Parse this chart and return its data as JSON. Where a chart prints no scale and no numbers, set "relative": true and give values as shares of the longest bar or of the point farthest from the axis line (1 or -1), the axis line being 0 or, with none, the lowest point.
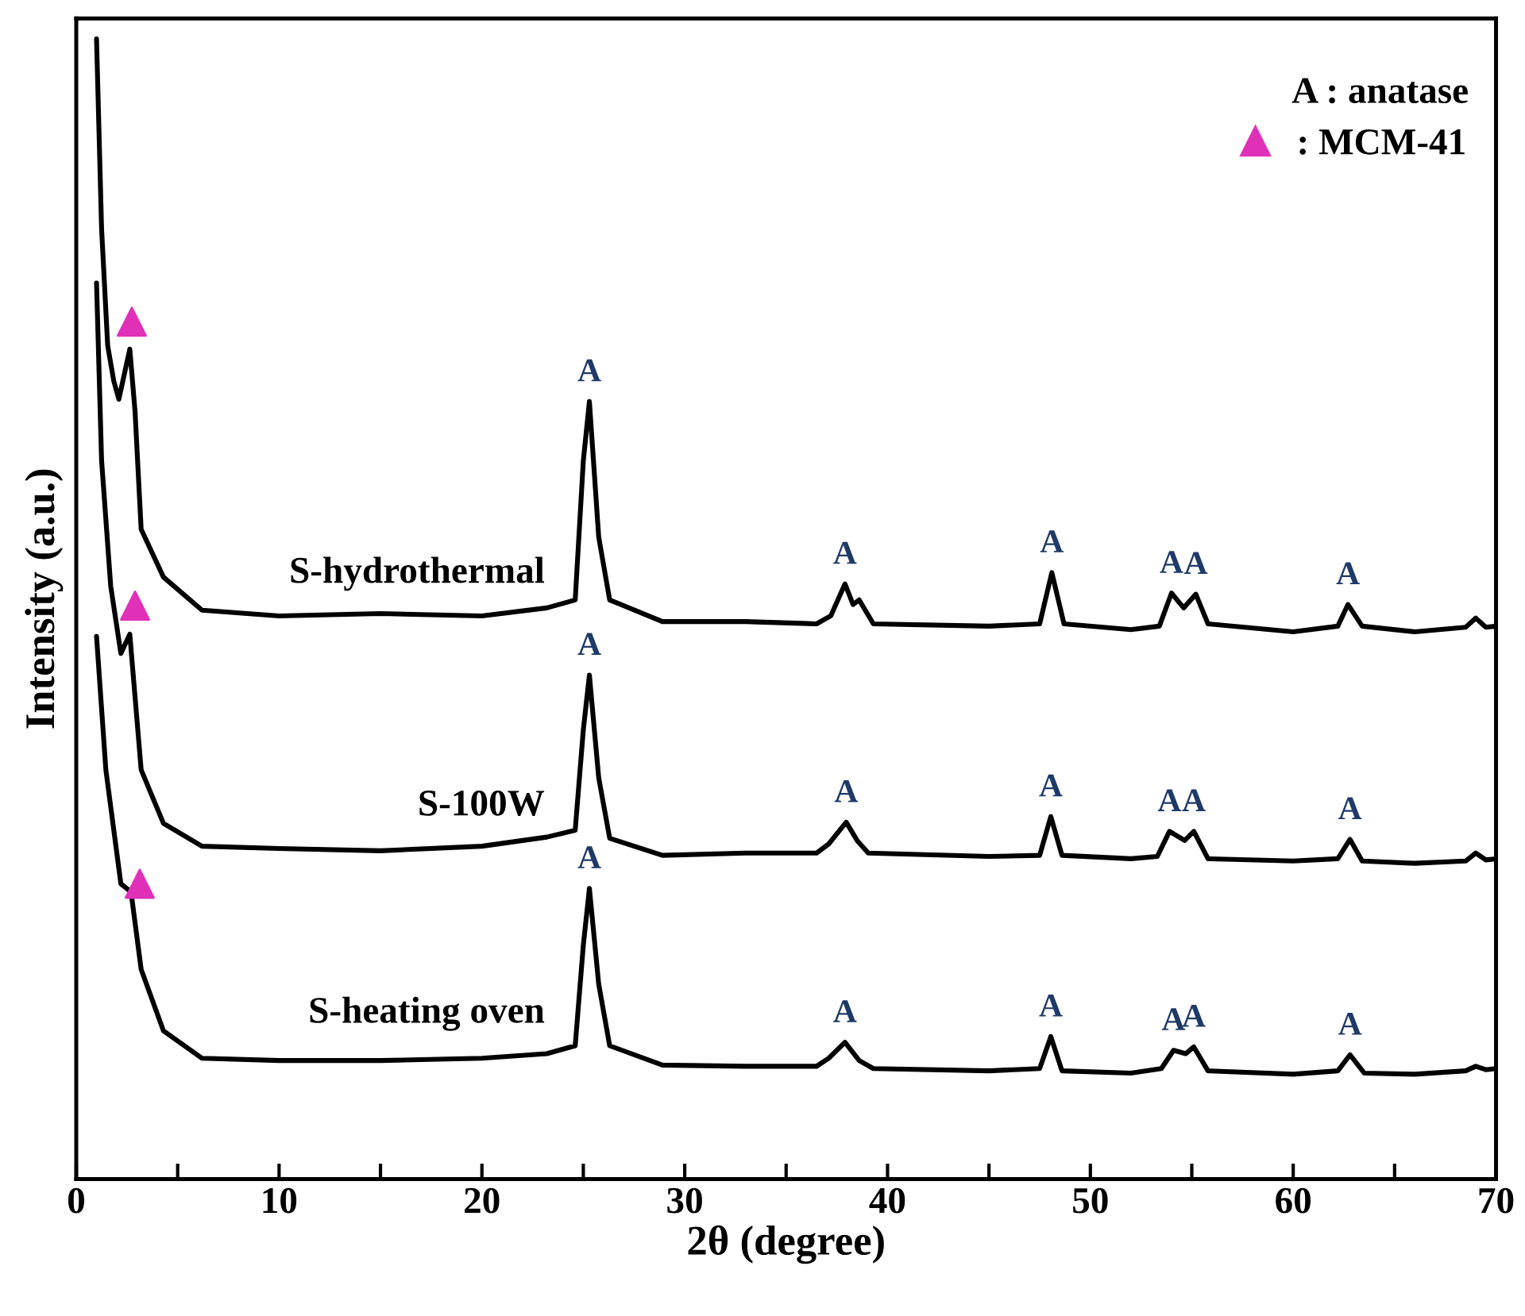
{
  "chart_data": {
    "type": "line",
    "xlabel": "2θ (degree)",
    "ylabel": "Intensity (a.u.)",
    "relative": true,
    "xlim": [
      0,
      70
    ],
    "xticks": [
      0,
      {
        "value": 5,
        "label": null
      },
      10,
      {
        "value": 15,
        "label": null
      },
      20,
      {
        "value": 25,
        "label": null
      },
      30,
      {
        "value": 35,
        "label": null
      },
      40,
      {
        "value": 45,
        "label": null
      },
      50,
      {
        "value": 55,
        "label": null
      },
      60,
      {
        "value": 65,
        "label": null
      },
      70
    ],
    "grid": false,
    "legend": "top right",
    "marker": "none",
    "line_style": "solid",
    "series": [
      {
        "name": "S-hydrothermal",
        "color": "#000000",
        "x": [
          1.0,
          1.25,
          1.55,
          1.85,
          2.1,
          2.64,
          2.9,
          3.2,
          4.3,
          6.2,
          10,
          15,
          20,
          23.2,
          24.6,
          25.0,
          25.3,
          25.76,
          26.3,
          28.9,
          33,
          36.5,
          37.2,
          37.9,
          38.3,
          38.6,
          39.3,
          45,
          47.5,
          48.1,
          48.7,
          52,
          53.4,
          54.0,
          54.6,
          55.2,
          55.8,
          60,
          62.2,
          62.7,
          63.4,
          66,
          68.5,
          69.0,
          69.5,
          70
        ],
        "values": [
          1.0,
          0.833,
          0.731,
          0.7,
          0.684,
          0.728,
          0.673,
          0.57,
          0.528,
          0.499,
          0.494,
          0.496,
          0.494,
          0.501,
          0.508,
          0.63,
          0.682,
          0.563,
          0.508,
          0.489,
          0.489,
          0.487,
          0.494,
          0.522,
          0.504,
          0.508,
          0.487,
          0.485,
          0.487,
          0.532,
          0.487,
          0.482,
          0.485,
          0.514,
          0.501,
          0.513,
          0.487,
          0.48,
          0.485,
          0.504,
          0.485,
          0.48,
          0.484,
          0.492,
          0.484,
          0.485
        ]
      },
      {
        "name": "S-100W",
        "color": "#000000",
        "x": [
          1.0,
          1.25,
          1.7,
          2.2,
          2.64,
          3.2,
          4.3,
          6.2,
          10,
          15,
          20,
          23.2,
          24.6,
          25.0,
          25.3,
          25.76,
          26.3,
          28.9,
          33,
          36.5,
          37.1,
          37.96,
          38.5,
          39.05,
          45,
          47.5,
          48.05,
          48.6,
          52,
          53.3,
          53.9,
          54.65,
          55.1,
          55.8,
          60,
          62.2,
          62.8,
          63.4,
          66,
          68.5,
          69.0,
          69.5,
          70
        ],
        "values": [
          0.786,
          0.63,
          0.52,
          0.461,
          0.478,
          0.359,
          0.312,
          0.292,
          0.29,
          0.288,
          0.292,
          0.3,
          0.306,
          0.394,
          0.442,
          0.352,
          0.299,
          0.284,
          0.286,
          0.286,
          0.294,
          0.313,
          0.297,
          0.286,
          0.283,
          0.284,
          0.318,
          0.284,
          0.281,
          0.283,
          0.305,
          0.297,
          0.305,
          0.281,
          0.279,
          0.281,
          0.298,
          0.279,
          0.277,
          0.279,
          0.286,
          0.28,
          0.281
        ]
      },
      {
        "name": "S-heating oven",
        "color": "#000000",
        "x": [
          1.0,
          1.46,
          2.2,
          2.7,
          3.2,
          4.3,
          6.2,
          10,
          15,
          20,
          23.2,
          24.6,
          25.0,
          25.3,
          25.76,
          26.3,
          28.9,
          33,
          36.5,
          37.1,
          37.9,
          38.6,
          39.3,
          45,
          47.5,
          48.05,
          48.6,
          52,
          53.5,
          54.1,
          54.7,
          55.1,
          55.8,
          60,
          62.2,
          62.8,
          63.5,
          66,
          68.5,
          69.0,
          69.5,
          70
        ],
        "values": [
          0.476,
          0.359,
          0.259,
          0.252,
          0.184,
          0.13,
          0.106,
          0.104,
          0.104,
          0.106,
          0.11,
          0.117,
          0.205,
          0.255,
          0.171,
          0.117,
          0.1,
          0.099,
          0.099,
          0.106,
          0.12,
          0.104,
          0.097,
          0.095,
          0.097,
          0.125,
          0.095,
          0.093,
          0.097,
          0.113,
          0.11,
          0.116,
          0.095,
          0.092,
          0.095,
          0.109,
          0.093,
          0.092,
          0.095,
          0.099,
          0.096,
          0.097
        ]
      },
      {
        "name": ": MCM-41",
        "type": "scatter",
        "marker": "triangle",
        "color": "#e030b8",
        "x": [
          2.74,
          2.9,
          3.13
        ],
        "values": [
          0.752,
          0.503,
          0.259
        ]
      }
    ],
    "annotations": [
      "A : anatase",
      {
        "text": "A",
        "x": 25.3,
        "y": 0.682
      },
      {
        "text": "A",
        "x": 37.9,
        "y": 0.522
      },
      {
        "text": "A",
        "x": 48.1,
        "y": 0.532
      },
      {
        "text": "A",
        "x": 54.0,
        "y": 0.514
      },
      {
        "text": "A",
        "x": 55.2,
        "y": 0.513
      },
      {
        "text": "A",
        "x": 62.7,
        "y": 0.504
      },
      {
        "text": "A",
        "x": 25.3,
        "y": 0.442
      },
      {
        "text": "A",
        "x": 37.96,
        "y": 0.313
      },
      {
        "text": "A",
        "x": 48.05,
        "y": 0.318
      },
      {
        "text": "A",
        "x": 53.9,
        "y": 0.305
      },
      {
        "text": "A",
        "x": 55.1,
        "y": 0.305
      },
      {
        "text": "A",
        "x": 62.8,
        "y": 0.298
      },
      {
        "text": "A",
        "x": 25.3,
        "y": 0.255
      },
      {
        "text": "A",
        "x": 37.9,
        "y": 0.12
      },
      {
        "text": "A",
        "x": 48.05,
        "y": 0.125
      },
      {
        "text": "A",
        "x": 54.1,
        "y": 0.113
      },
      {
        "text": "A",
        "x": 55.1,
        "y": 0.116
      },
      {
        "text": "A",
        "x": 62.8,
        "y": 0.109
      }
    ]
  }
}
